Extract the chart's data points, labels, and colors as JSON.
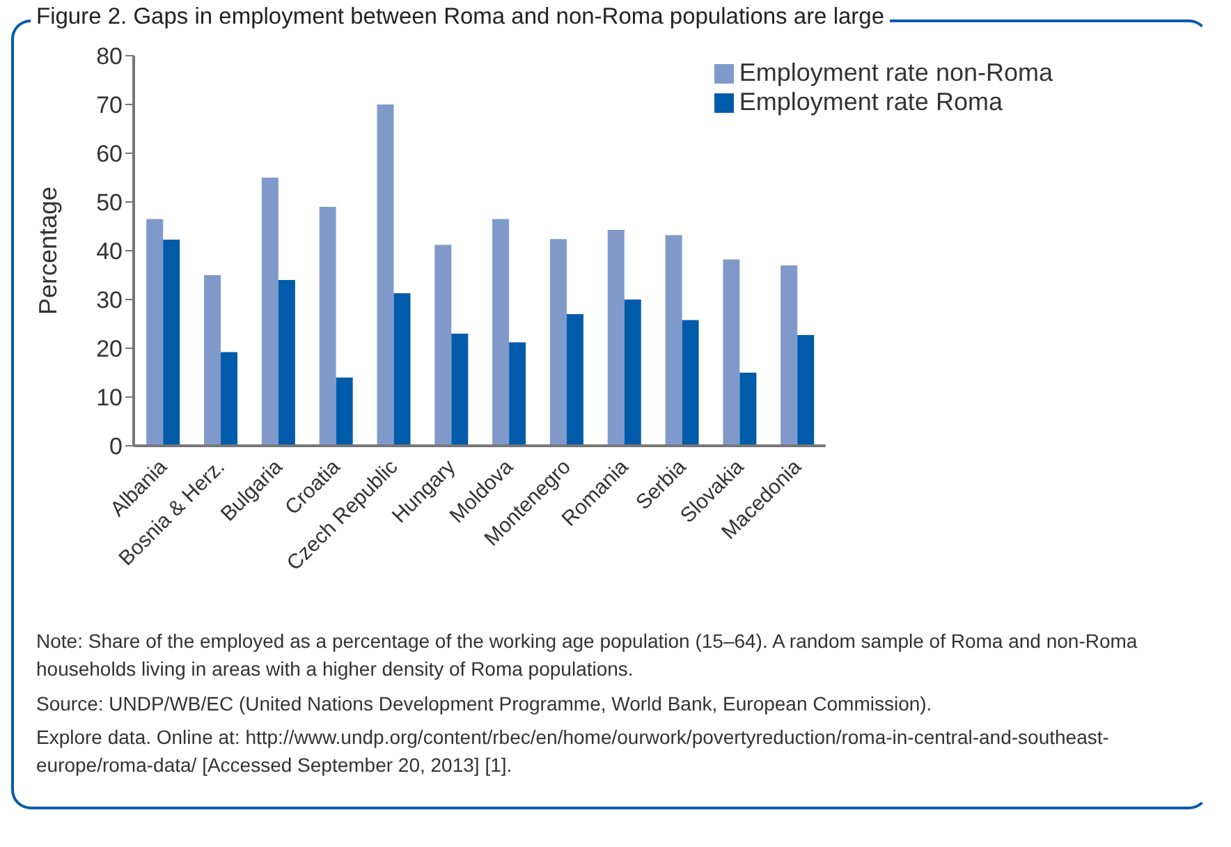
{
  "chart_data": {
    "type": "bar",
    "title": "Figure 2. Gaps in employment between Roma and non-Roma populations are large",
    "ylabel": "Percentage",
    "categories": [
      "Albania",
      "Bosnia & Herz.",
      "Bulgaria",
      "Croatia",
      "Czech Republic",
      "Hungary",
      "Moldova",
      "Montenegro",
      "Romania",
      "Serbia",
      "Slovakia",
      "Macedonia"
    ],
    "series": [
      {
        "name": "Employment rate non-Roma",
        "color": "#7f9aca",
        "values": [
          46.5,
          35,
          55,
          49,
          70,
          41.2,
          46.5,
          42.4,
          44.3,
          43.2,
          38.2,
          37
        ]
      },
      {
        "name": "Employment rate Roma",
        "color": "#005bab",
        "values": [
          42.3,
          19.2,
          34,
          14,
          31.3,
          23,
          21.2,
          27,
          30,
          25.8,
          15,
          22.7
        ]
      }
    ],
    "ylim": [
      0,
      80
    ],
    "yticks": [
      0,
      10,
      20,
      30,
      40,
      50,
      60,
      70,
      80
    ],
    "grid": false,
    "legend": "top right",
    "annotations": [
      "Note: Share of the employed as a percentage of the working age population (15–64). A random sample of Roma and non-Roma households living in areas with a higher density of Roma populations.",
      "Source: UNDP/WB/EC (United Nations Development Programme, World Bank, European Commission).",
      "Explore data. Online at: http://www.undp.org/content/rbec/en/home/ourwork/povertyreduction/roma-in-central-and-southeast-europe/roma-data/ [Accessed September 20, 2013] [1]."
    ]
  }
}
